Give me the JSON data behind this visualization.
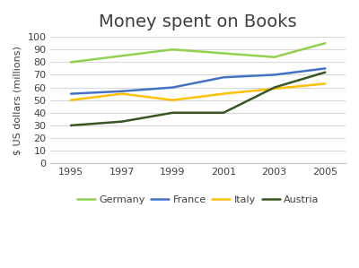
{
  "title": "Money spent on Books",
  "ylabel": "$ US dollars (millions)",
  "years": [
    1995,
    1997,
    1999,
    2001,
    2003,
    2005
  ],
  "series": {
    "Germany": {
      "values": [
        80,
        85,
        90,
        87,
        84,
        95
      ],
      "color": "#92d050",
      "linewidth": 1.8
    },
    "France": {
      "values": [
        55,
        57,
        60,
        68,
        70,
        75
      ],
      "color": "#4472c4",
      "linewidth": 1.8
    },
    "Italy": {
      "values": [
        50,
        55,
        50,
        55,
        59,
        63
      ],
      "color": "#ffc000",
      "linewidth": 1.8
    },
    "Austria": {
      "values": [
        30,
        33,
        40,
        40,
        60,
        72
      ],
      "color": "#375623",
      "linewidth": 1.8
    }
  },
  "ylim": [
    0,
    100
  ],
  "yticks": [
    0,
    10,
    20,
    30,
    40,
    50,
    60,
    70,
    80,
    90,
    100
  ],
  "xticks": [
    1995,
    1997,
    1999,
    2001,
    2003,
    2005
  ],
  "title_fontsize": 14,
  "axis_label_fontsize": 8,
  "tick_fontsize": 8,
  "legend_fontsize": 8,
  "background_color": "#ffffff",
  "grid_color": "#d9d9d9"
}
